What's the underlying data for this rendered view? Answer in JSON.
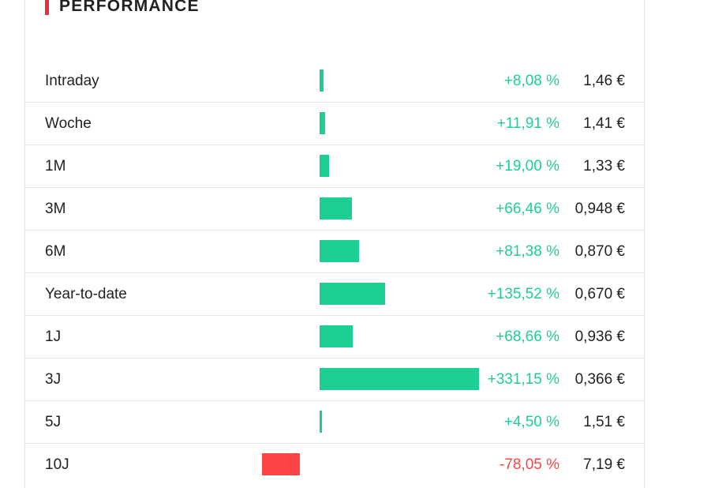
{
  "section": {
    "title": "PERFORMANCE"
  },
  "colors": {
    "accent": "#e8303a",
    "positive": "#1dcf94",
    "negative": "#fe4444"
  },
  "rows": [
    {
      "label": "Intraday",
      "change": "+8,08 %",
      "price": "1,46 €",
      "change_value": 8.08
    },
    {
      "label": "Woche",
      "change": "+11,91 %",
      "price": "1,41 €",
      "change_value": 11.91
    },
    {
      "label": "1M",
      "change": "+19,00 %",
      "price": "1,33 €",
      "change_value": 19.0
    },
    {
      "label": "3M",
      "change": "+66,46 %",
      "price": "0,948 €",
      "change_value": 66.46
    },
    {
      "label": "6M",
      "change": "+81,38 %",
      "price": "0,870 €",
      "change_value": 81.38
    },
    {
      "label": "Year-to-date",
      "change": "+135,52 %",
      "price": "0,670 €",
      "change_value": 135.52
    },
    {
      "label": "1J",
      "change": "+68,66 %",
      "price": "0,936 €",
      "change_value": 68.66
    },
    {
      "label": "3J",
      "change": "+331,15 %",
      "price": "0,366 €",
      "change_value": 331.15
    },
    {
      "label": "5J",
      "change": "+4,50 %",
      "price": "1,51 €",
      "change_value": 4.5
    },
    {
      "label": "10J",
      "change": "-78,05 %",
      "price": "7,19 €",
      "change_value": -78.05
    }
  ]
}
